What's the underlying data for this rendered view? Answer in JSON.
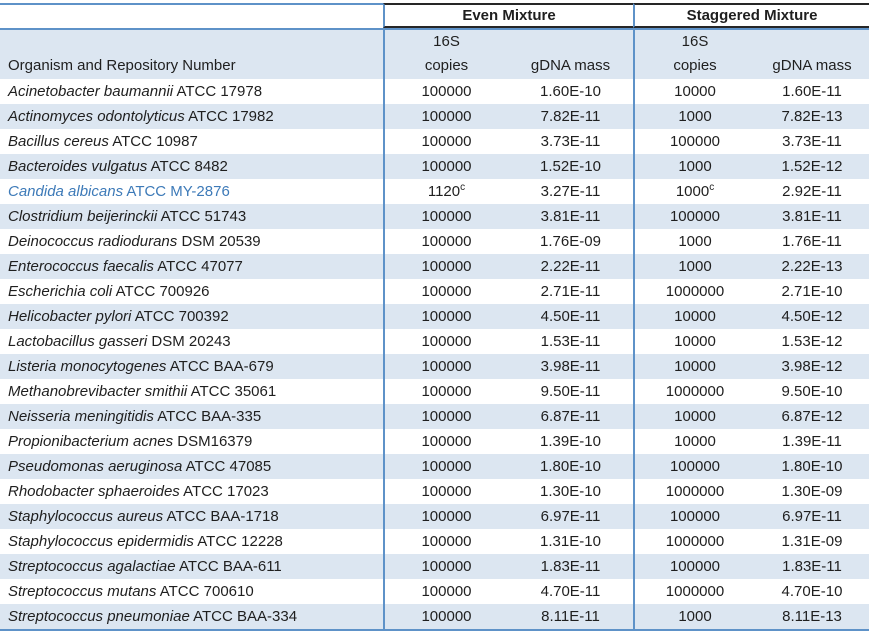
{
  "table": {
    "headers": {
      "even_mixture": "Even Mixture",
      "staggered_mixture": "Staggered Mixture",
      "organism_column": "Organism and Repository Number",
      "copies_top": "16S",
      "copies_bottom": "copies",
      "gdna_mass": "gDNA mass"
    },
    "colors": {
      "band": "#dce6f1",
      "border_blue": "#5e92c8",
      "border_dark": "#262626",
      "highlight_text": "#3d7ab8",
      "text": "#1f1f1f"
    },
    "rows": [
      {
        "organism": "Acinetobacter baumannii",
        "repository": "ATCC 17978",
        "even_copies": "100000",
        "even_copies_sup": "",
        "even_gdna": "1.60E-10",
        "stag_copies": "10000",
        "stag_copies_sup": "",
        "stag_gdna": "1.60E-11",
        "highlight": false
      },
      {
        "organism": "Actinomyces odontolyticus",
        "repository": "ATCC 17982",
        "even_copies": "100000",
        "even_copies_sup": "",
        "even_gdna": "7.82E-11",
        "stag_copies": "1000",
        "stag_copies_sup": "",
        "stag_gdna": "7.82E-13",
        "highlight": false
      },
      {
        "organism": "Bacillus cereus",
        "repository": "ATCC 10987",
        "even_copies": "100000",
        "even_copies_sup": "",
        "even_gdna": "3.73E-11",
        "stag_copies": "100000",
        "stag_copies_sup": "",
        "stag_gdna": "3.73E-11",
        "highlight": false
      },
      {
        "organism": "Bacteroides vulgatus",
        "repository": "ATCC 8482",
        "even_copies": "100000",
        "even_copies_sup": "",
        "even_gdna": "1.52E-10",
        "stag_copies": "1000",
        "stag_copies_sup": "",
        "stag_gdna": "1.52E-12",
        "highlight": false
      },
      {
        "organism": "Candida albicans",
        "repository": "ATCC MY-2876",
        "even_copies": "1120",
        "even_copies_sup": "c",
        "even_gdna": "3.27E-11",
        "stag_copies": "1000",
        "stag_copies_sup": "c",
        "stag_gdna": "2.92E-11",
        "highlight": true
      },
      {
        "organism": "Clostridium beijerinckii",
        "repository": "ATCC 51743",
        "even_copies": "100000",
        "even_copies_sup": "",
        "even_gdna": "3.81E-11",
        "stag_copies": "100000",
        "stag_copies_sup": "",
        "stag_gdna": "3.81E-11",
        "highlight": false
      },
      {
        "organism": "Deinococcus radiodurans",
        "repository": "DSM 20539",
        "even_copies": "100000",
        "even_copies_sup": "",
        "even_gdna": "1.76E-09",
        "stag_copies": "1000",
        "stag_copies_sup": "",
        "stag_gdna": "1.76E-11",
        "highlight": false
      },
      {
        "organism": "Enterococcus faecalis",
        "repository": "ATCC 47077",
        "even_copies": "100000",
        "even_copies_sup": "",
        "even_gdna": "2.22E-11",
        "stag_copies": "1000",
        "stag_copies_sup": "",
        "stag_gdna": "2.22E-13",
        "highlight": false
      },
      {
        "organism": "Escherichia coli",
        "repository": "ATCC 700926",
        "even_copies": "100000",
        "even_copies_sup": "",
        "even_gdna": "2.71E-11",
        "stag_copies": "1000000",
        "stag_copies_sup": "",
        "stag_gdna": "2.71E-10",
        "highlight": false
      },
      {
        "organism": "Helicobacter pylori",
        "repository": "ATCC 700392",
        "even_copies": "100000",
        "even_copies_sup": "",
        "even_gdna": "4.50E-11",
        "stag_copies": "10000",
        "stag_copies_sup": "",
        "stag_gdna": "4.50E-12",
        "highlight": false
      },
      {
        "organism": "Lactobacillus gasseri",
        "repository": "DSM 20243",
        "even_copies": "100000",
        "even_copies_sup": "",
        "even_gdna": "1.53E-11",
        "stag_copies": "10000",
        "stag_copies_sup": "",
        "stag_gdna": "1.53E-12",
        "highlight": false
      },
      {
        "organism": "Listeria monocytogenes",
        "repository": "ATCC BAA-679",
        "even_copies": "100000",
        "even_copies_sup": "",
        "even_gdna": "3.98E-11",
        "stag_copies": "10000",
        "stag_copies_sup": "",
        "stag_gdna": "3.98E-12",
        "highlight": false
      },
      {
        "organism": "Methanobrevibacter smithii",
        "repository": "ATCC 35061",
        "even_copies": "100000",
        "even_copies_sup": "",
        "even_gdna": "9.50E-11",
        "stag_copies": "1000000",
        "stag_copies_sup": "",
        "stag_gdna": "9.50E-10",
        "highlight": false
      },
      {
        "organism": "Neisseria meningitidis",
        "repository": "ATCC BAA-335",
        "even_copies": "100000",
        "even_copies_sup": "",
        "even_gdna": "6.87E-11",
        "stag_copies": "10000",
        "stag_copies_sup": "",
        "stag_gdna": "6.87E-12",
        "highlight": false
      },
      {
        "organism": "Propionibacterium acnes",
        "repository": "DSM16379",
        "even_copies": "100000",
        "even_copies_sup": "",
        "even_gdna": "1.39E-10",
        "stag_copies": "10000",
        "stag_copies_sup": "",
        "stag_gdna": "1.39E-11",
        "highlight": false
      },
      {
        "organism": "Pseudomonas aeruginosa",
        "repository": "ATCC 47085",
        "even_copies": "100000",
        "even_copies_sup": "",
        "even_gdna": "1.80E-10",
        "stag_copies": "100000",
        "stag_copies_sup": "",
        "stag_gdna": "1.80E-10",
        "highlight": false
      },
      {
        "organism": "Rhodobacter sphaeroides",
        "repository": "ATCC 17023",
        "even_copies": "100000",
        "even_copies_sup": "",
        "even_gdna": "1.30E-10",
        "stag_copies": "1000000",
        "stag_copies_sup": "",
        "stag_gdna": "1.30E-09",
        "highlight": false
      },
      {
        "organism": "Staphylococcus aureus",
        "repository": "ATCC BAA-1718",
        "even_copies": "100000",
        "even_copies_sup": "",
        "even_gdna": "6.97E-11",
        "stag_copies": "100000",
        "stag_copies_sup": "",
        "stag_gdna": "6.97E-11",
        "highlight": false
      },
      {
        "organism": "Staphylococcus epidermidis",
        "repository": "ATCC 12228",
        "even_copies": "100000",
        "even_copies_sup": "",
        "even_gdna": "1.31E-10",
        "stag_copies": "1000000",
        "stag_copies_sup": "",
        "stag_gdna": "1.31E-09",
        "highlight": false
      },
      {
        "organism": "Streptococcus agalactiae",
        "repository": "ATCC BAA-611",
        "even_copies": "100000",
        "even_copies_sup": "",
        "even_gdna": "1.83E-11",
        "stag_copies": "100000",
        "stag_copies_sup": "",
        "stag_gdna": "1.83E-11",
        "highlight": false
      },
      {
        "organism": "Streptococcus mutans",
        "repository": "ATCC 700610",
        "even_copies": "100000",
        "even_copies_sup": "",
        "even_gdna": "4.70E-11",
        "stag_copies": "1000000",
        "stag_copies_sup": "",
        "stag_gdna": "4.70E-10",
        "highlight": false
      },
      {
        "organism": "Streptococcus pneumoniae",
        "repository": "ATCC BAA-334",
        "even_copies": "100000",
        "even_copies_sup": "",
        "even_gdna": "8.11E-11",
        "stag_copies": "1000",
        "stag_copies_sup": "",
        "stag_gdna": "8.11E-13",
        "highlight": false
      }
    ]
  }
}
